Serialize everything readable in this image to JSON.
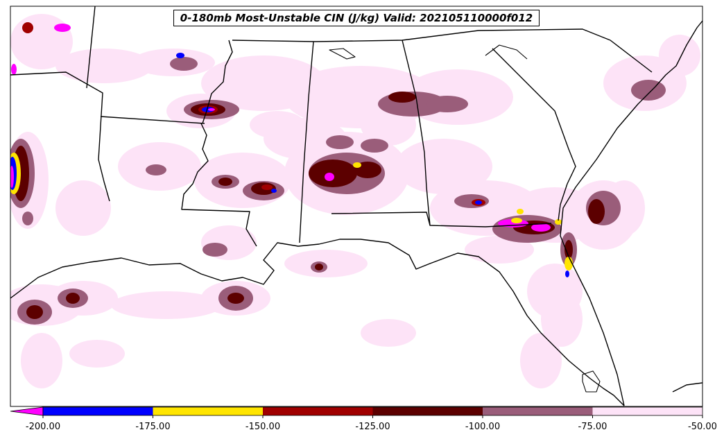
{
  "title": "0-180mb Most-Unstable CIN (J/kg) Valid: 202105110000f012",
  "colorbar": {
    "ticks": [
      "-200.00",
      "-175.00",
      "-150.00",
      "-125.00",
      "-100.00",
      "-75.00",
      "-50.00"
    ],
    "bins": [
      {
        "from": -200,
        "to": -175,
        "color": "#0000ff"
      },
      {
        "from": -175,
        "to": -150,
        "color": "#ffe500"
      },
      {
        "from": -150,
        "to": -125,
        "color": "#a00000"
      },
      {
        "from": -125,
        "to": -100,
        "color": "#5c0000"
      },
      {
        "from": -100,
        "to": -75,
        "color": "#9a5d7a"
      },
      {
        "from": -75,
        "to": -50,
        "color": "#fde3f7"
      }
    ],
    "under_color": "#ff00ff"
  },
  "colors": {
    "light": "#fde3f7",
    "mauve": "#9a5d7a",
    "darkred": "#5c0000",
    "red": "#a00000",
    "yellow": "#ffe500",
    "blue": "#0000ff",
    "magenta": "#ff00ff"
  }
}
